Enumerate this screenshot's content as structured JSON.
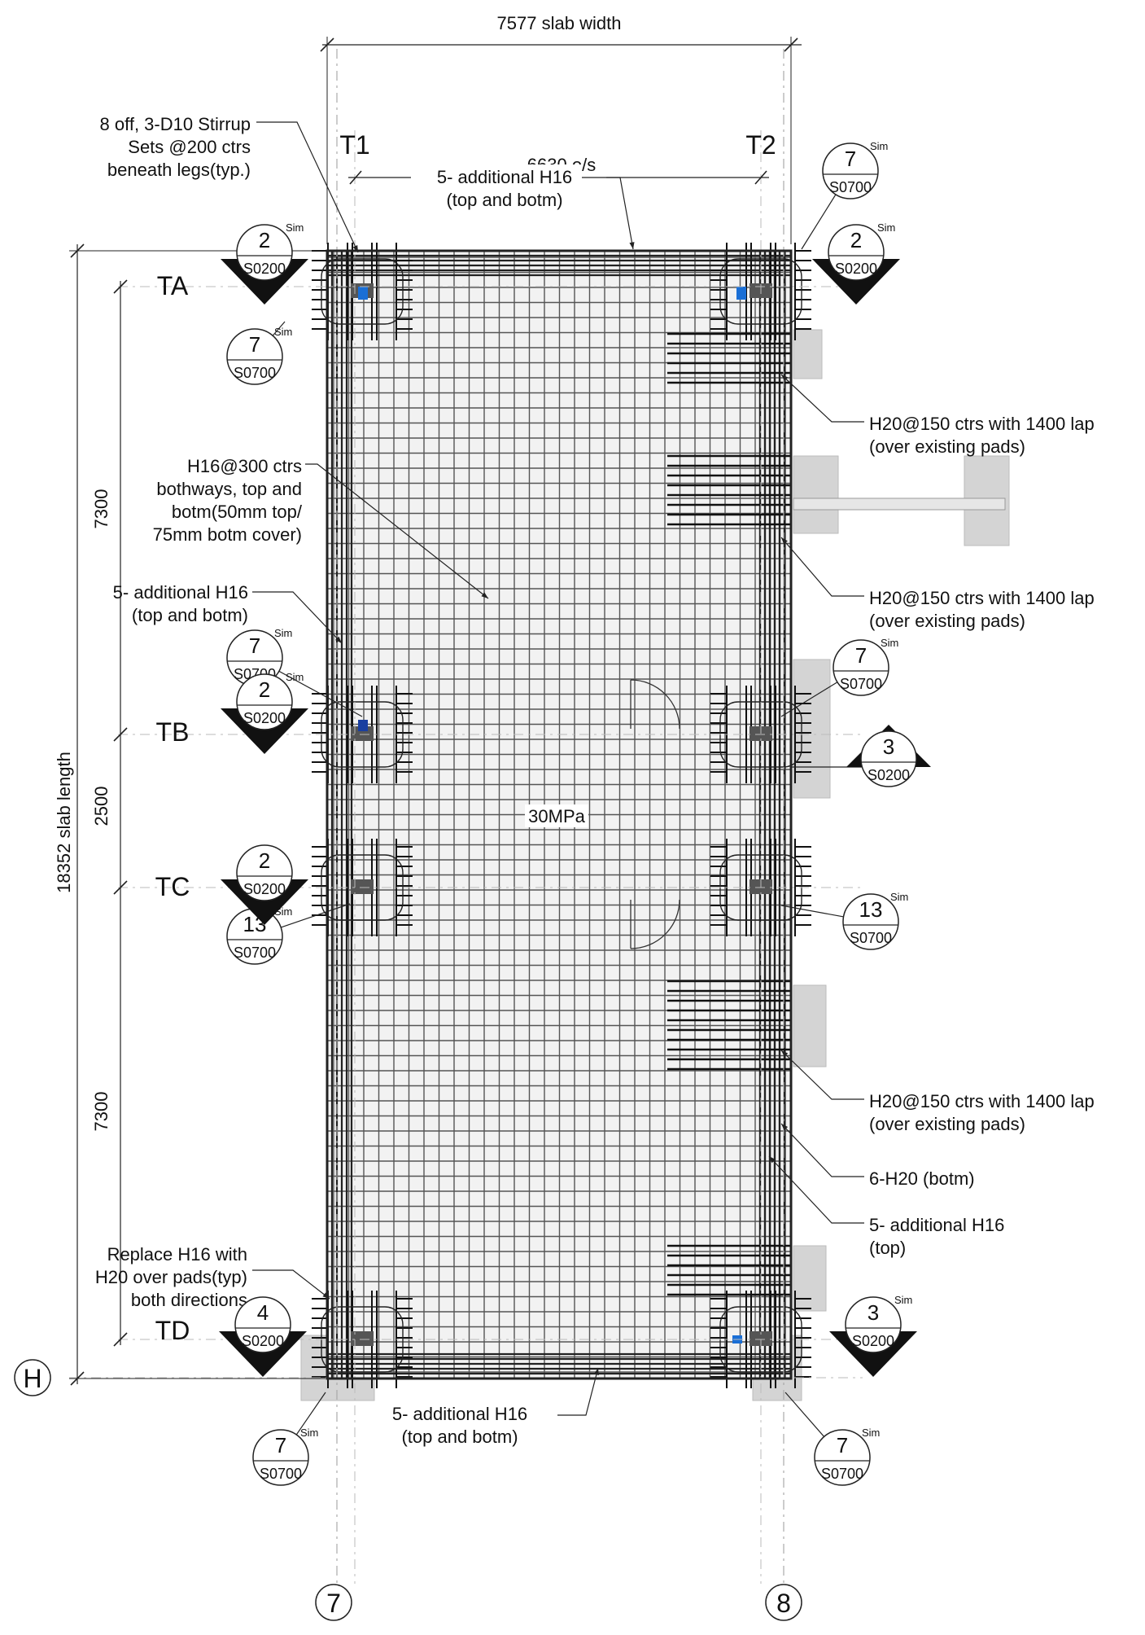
{
  "drawing": {
    "slab_width_label": "7577 slab width",
    "slab_length_label": "18352 slab length",
    "inner_dim_label": "6630 o/s",
    "concrete_label": "30MPa",
    "bay_dims": [
      "7300",
      "2500",
      "7300"
    ],
    "grid_cols": [
      {
        "id": "col-T1",
        "label": "T1"
      },
      {
        "id": "col-T2",
        "label": "T2"
      }
    ],
    "grid_rows": [
      {
        "id": "row-TA",
        "label": "TA"
      },
      {
        "id": "row-TB",
        "label": "TB"
      },
      {
        "id": "row-TC",
        "label": "TC"
      },
      {
        "id": "row-TD",
        "label": "TD"
      }
    ],
    "grid_bubbles": [
      {
        "id": "grid-7",
        "label": "7"
      },
      {
        "id": "grid-8",
        "label": "8"
      },
      {
        "id": "grid-H",
        "label": "H"
      }
    ]
  },
  "notes": [
    {
      "id": "stirrup",
      "lines": [
        "8 off, 3-D10 Stirrup",
        "Sets @200 ctrs",
        "beneath legs(typ.)"
      ]
    },
    {
      "id": "add-h16-top",
      "lines": [
        "5- additional H16",
        "(top and botm)"
      ]
    },
    {
      "id": "h16-300",
      "lines": [
        "H16@300 ctrs",
        "bothways, top and",
        "botm(50mm top/",
        "75mm botm cover)"
      ]
    },
    {
      "id": "add-h16-left",
      "lines": [
        "5- additional H16",
        "(top and botm)"
      ]
    },
    {
      "id": "replace-h16",
      "lines": [
        "Replace H16 with",
        "H20 over pads(typ)",
        "both directions"
      ]
    },
    {
      "id": "add-h16-bottom",
      "lines": [
        "5- additional H16",
        "(top and botm)"
      ]
    },
    {
      "id": "h20-lap-1",
      "lines": [
        "H20@150 ctrs with 1400 lap",
        "(over existing pads)"
      ]
    },
    {
      "id": "h20-lap-2",
      "lines": [
        "H20@150 ctrs with 1400 lap",
        "(over existing pads)"
      ]
    },
    {
      "id": "h20-lap-3",
      "lines": [
        "H20@150 ctrs with 1400 lap",
        "(over existing pads)"
      ]
    },
    {
      "id": "6-h20",
      "lines": [
        "6-H20 (botm)"
      ]
    },
    {
      "id": "add-h16-right",
      "lines": [
        "5- additional H16",
        "(top)"
      ]
    }
  ],
  "detail_bubbles": [
    {
      "id": "d1",
      "num": "7",
      "sheet": "S0700",
      "sim": "Sim"
    },
    {
      "id": "d2",
      "num": "7",
      "sheet": "S0700",
      "sim": "Sim"
    },
    {
      "id": "d3",
      "num": "7",
      "sheet": "S0700",
      "sim": "Sim"
    },
    {
      "id": "d4",
      "num": "7",
      "sheet": "S0700",
      "sim": "Sim"
    },
    {
      "id": "d5",
      "num": "13",
      "sheet": "S0700",
      "sim": "Sim"
    },
    {
      "id": "d6",
      "num": "13",
      "sheet": "S0700",
      "sim": "Sim"
    },
    {
      "id": "d7",
      "num": "7",
      "sheet": "S0700",
      "sim": "Sim"
    },
    {
      "id": "d8",
      "num": "7",
      "sheet": "S0700",
      "sim": "Sim"
    }
  ],
  "section_markers": [
    {
      "id": "s1",
      "num": "2",
      "sheet": "S0200",
      "sim": "Sim"
    },
    {
      "id": "s2",
      "num": "2",
      "sheet": "S0200",
      "sim": "Sim"
    },
    {
      "id": "s3",
      "num": "2",
      "sheet": "S0200",
      "sim": "Sim"
    },
    {
      "id": "s4",
      "num": "3",
      "sheet": "S0200",
      "sim": ""
    },
    {
      "id": "s5",
      "num": "2",
      "sheet": "S0200",
      "sim": ""
    },
    {
      "id": "s6",
      "num": "4",
      "sheet": "S0200",
      "sim": ""
    },
    {
      "id": "s7",
      "num": "3",
      "sheet": "S0200",
      "sim": "Sim"
    }
  ]
}
